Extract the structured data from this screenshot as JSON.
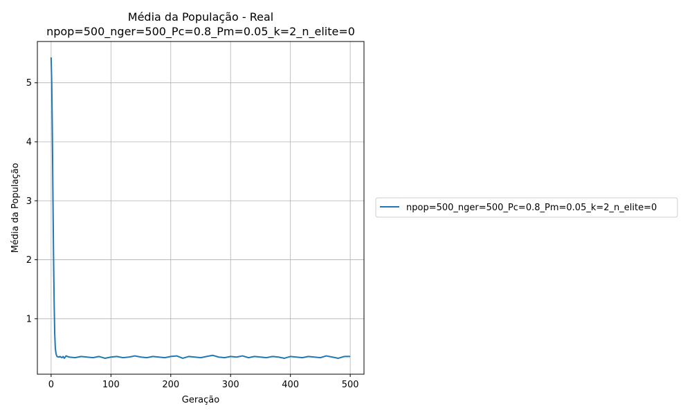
{
  "chart_data": {
    "type": "line",
    "title": [
      "Média da População - Real",
      "npop=500_nger=500_Pc=0.8_Pm=0.05_k=2_n_elite=0"
    ],
    "xlabel": "Geração",
    "ylabel": "Média da População",
    "xlim": [
      -23,
      523
    ],
    "ylim": [
      0.06,
      5.7
    ],
    "xticks": [
      0,
      100,
      200,
      300,
      400,
      500
    ],
    "yticks": [
      1,
      2,
      3,
      4,
      5
    ],
    "grid": true,
    "legend_placement": "right, outside plot",
    "series": [
      {
        "name": "npop=500_nger=500_Pc=0.8_Pm=0.05_k=2_n_elite=0",
        "color": "#1f77b4",
        "x": [
          0,
          1,
          2,
          3,
          4,
          5,
          6,
          7,
          8,
          9,
          10,
          12,
          15,
          18,
          20,
          22,
          25,
          30,
          40,
          50,
          60,
          70,
          80,
          90,
          100,
          110,
          120,
          130,
          140,
          150,
          160,
          170,
          180,
          190,
          200,
          210,
          220,
          230,
          240,
          250,
          260,
          270,
          280,
          290,
          300,
          310,
          320,
          330,
          340,
          350,
          360,
          370,
          380,
          390,
          400,
          410,
          420,
          430,
          440,
          450,
          460,
          470,
          480,
          490,
          500
        ],
        "y": [
          5.43,
          5.0,
          4.2,
          3.1,
          2.1,
          1.3,
          0.75,
          0.5,
          0.42,
          0.38,
          0.36,
          0.35,
          0.36,
          0.34,
          0.36,
          0.33,
          0.37,
          0.35,
          0.34,
          0.36,
          0.35,
          0.34,
          0.36,
          0.33,
          0.35,
          0.36,
          0.34,
          0.35,
          0.37,
          0.35,
          0.34,
          0.36,
          0.35,
          0.34,
          0.36,
          0.37,
          0.33,
          0.36,
          0.35,
          0.34,
          0.36,
          0.38,
          0.35,
          0.34,
          0.36,
          0.35,
          0.37,
          0.34,
          0.36,
          0.35,
          0.34,
          0.36,
          0.35,
          0.33,
          0.36,
          0.35,
          0.34,
          0.36,
          0.35,
          0.34,
          0.37,
          0.35,
          0.33,
          0.36,
          0.36
        ]
      }
    ]
  }
}
